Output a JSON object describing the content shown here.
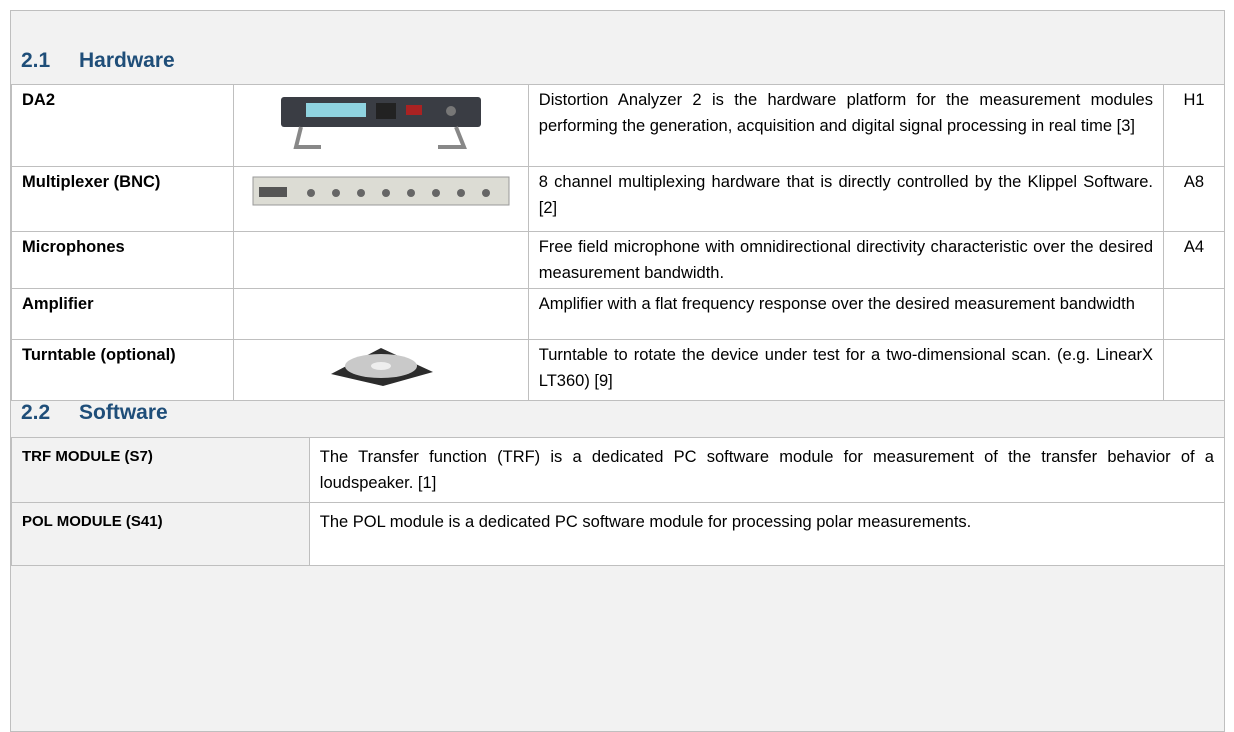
{
  "hardware": {
    "heading": {
      "number": "2.1",
      "title": "Hardware"
    },
    "rows": [
      {
        "name": "DA2",
        "description": "Distortion Analyzer 2 is the hardware platform for the measurement modules performing the generation, acquisition and digital signal processing in real time [3]",
        "ref": "H1"
      },
      {
        "name": "Multiplexer (BNC)",
        "description": "8 channel multiplexing hardware that is directly controlled by the Klippel Software. [2]",
        "ref": "A8"
      },
      {
        "name": "Microphones",
        "description": "Free field microphone with omnidirectional directivity characteristic over the desired measurement bandwidth.",
        "ref": "A4"
      },
      {
        "name": "Amplifier",
        "description": "Amplifier with a flat frequency response over the desired measurement bandwidth"
      },
      {
        "name": "Turntable (optional)",
        "description": "Turntable to rotate the device under test for a two-dimensional scan. (e.g. LinearX LT360) [9]"
      }
    ]
  },
  "software": {
    "heading": {
      "number": "2.2",
      "title": "Software"
    },
    "rows": [
      {
        "name": "TRF MODULE (S7)",
        "description": "The Transfer function (TRF) is a dedicated PC software module for measurement of the transfer behavior of a loudspeaker. [1]"
      },
      {
        "name": "POL MODULE (S41)",
        "description": "The POL module is a dedicated PC software module for processing polar measurements."
      }
    ]
  }
}
